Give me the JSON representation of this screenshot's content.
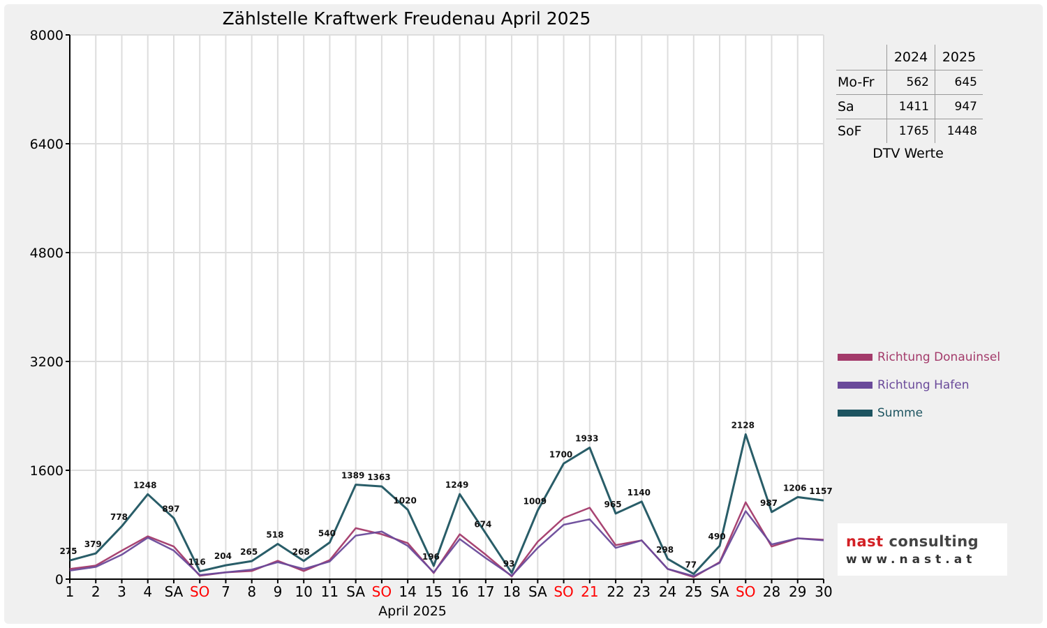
{
  "chart_data": {
    "type": "line",
    "title": "Zählstelle Kraftwerk Freudenau April 2025",
    "xlabel": "April 2025",
    "ylabel": "",
    "ylim": [
      0,
      8000
    ],
    "yticks": [
      0,
      1600,
      3200,
      4800,
      6400,
      8000
    ],
    "grid": true,
    "legend_position": "right",
    "categories": [
      "1",
      "2",
      "3",
      "4",
      "SA",
      "SO",
      "7",
      "8",
      "9",
      "10",
      "11",
      "SA",
      "SO",
      "14",
      "15",
      "16",
      "17",
      "18",
      "SA",
      "SO",
      "21",
      "22",
      "23",
      "24",
      "25",
      "SA",
      "SO",
      "28",
      "29",
      "30"
    ],
    "highlight_categories": [
      "SO",
      "21"
    ],
    "series": [
      {
        "name": "Richtung Donauinsel",
        "color": "#a33a6a",
        "values": [
          150,
          200,
          420,
          630,
          480,
          50,
          100,
          120,
          270,
          120,
          280,
          750,
          660,
          530,
          90,
          660,
          360,
          40,
          550,
          900,
          1050,
          500,
          570,
          150,
          30,
          250,
          1130,
          480,
          600,
          580
        ]
      },
      {
        "name": "Richtung Hafen",
        "color": "#6a4a9a",
        "values": [
          125,
          180,
          360,
          610,
          420,
          60,
          100,
          140,
          250,
          150,
          260,
          640,
          700,
          490,
          100,
          590,
          310,
          50,
          460,
          800,
          880,
          460,
          570,
          150,
          45,
          240,
          1000,
          510,
          600,
          570
        ]
      },
      {
        "name": "Summe",
        "color": "#1d5460",
        "values": [
          275,
          379,
          778,
          1248,
          897,
          116,
          204,
          265,
          518,
          268,
          540,
          1389,
          1363,
          1020,
          196,
          1249,
          674,
          93,
          1009,
          1700,
          1933,
          965,
          1140,
          298,
          77,
          490,
          2128,
          987,
          1206,
          1157
        ]
      }
    ],
    "data_labels": [
      "275",
      "379",
      "778",
      "1248",
      "897",
      "116",
      "204",
      "265",
      "518",
      "268",
      "540",
      "1389",
      "1363",
      "1020",
      "196",
      "1249",
      "674",
      "93",
      "1009",
      "1700",
      "1933",
      "965",
      "1140",
      "298",
      "77",
      "490",
      "2128",
      "987",
      "1206",
      "1157"
    ]
  },
  "dtv": {
    "headers": [
      "2024",
      "2025"
    ],
    "rows": [
      {
        "label": "Mo-Fr",
        "y2024": "562",
        "y2025": "645"
      },
      {
        "label": "Sa",
        "y2024": "1411",
        "y2025": "947"
      },
      {
        "label": "SoF",
        "y2024": "1765",
        "y2025": "1448"
      }
    ],
    "caption": "DTV Werte"
  },
  "logo": {
    "brand_red": "nast",
    "brand_rest": "consulting",
    "url": "www.nast.at"
  },
  "colors": {
    "grid": "#dddddd",
    "axis": "#000000",
    "highlight": "#ff0000"
  }
}
